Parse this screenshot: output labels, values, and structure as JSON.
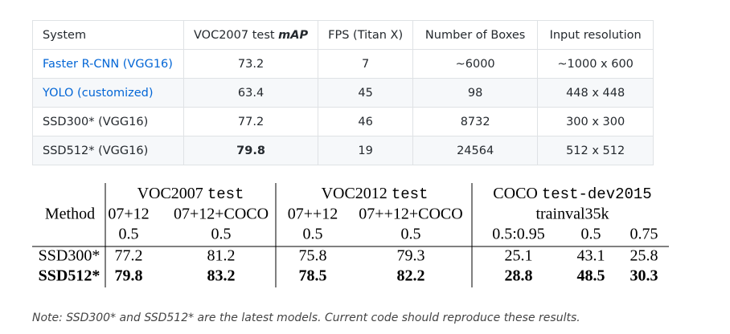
{
  "table": {
    "header": [
      "System",
      {
        "text": "VOC2007 test",
        "em": "mAP"
      },
      "FPS (Titan X)",
      "Number of Boxes",
      "Input resolution"
    ],
    "rows": [
      [
        "Faster R-CNN (VGG16)",
        "73.2",
        "7",
        "~6000",
        "~1000 x 600"
      ],
      [
        "YOLO (customized)",
        "63.4",
        "45",
        "98",
        "448 x 448"
      ],
      [
        "SSD300* (VGG16)",
        "77.2",
        "46",
        "8732",
        "300 x 300"
      ],
      [
        "SSD512* (VGG16)",
        "79.8",
        "19",
        "24564",
        "512 x 512"
      ]
    ]
  },
  "results": {
    "method_label": "Method",
    "groups": [
      {
        "name": "VOC2007",
        "mono": "test"
      },
      {
        "name": "VOC2012",
        "mono": "test"
      },
      {
        "name": "COCO",
        "mono": "test-dev2015",
        "sub": "trainval35k"
      }
    ],
    "train_sets": [
      "07+12",
      "07+12+COCO",
      "07++12",
      "07++12+COCO"
    ],
    "ious": [
      "0.5",
      "0.5",
      "0.5",
      "0.5",
      "0.5:0.95",
      "0.5",
      "0.75"
    ],
    "rows": [
      {
        "method": "SSD300*",
        "values": [
          "77.2",
          "81.2",
          "75.8",
          "79.3",
          "25.1",
          "43.1",
          "25.8"
        ]
      },
      {
        "method": "SSD512*",
        "values": [
          "79.8",
          "83.2",
          "78.5",
          "82.2",
          "28.8",
          "48.5",
          "30.3"
        ]
      }
    ]
  },
  "note": "Note: SSD300* and SSD512* are the latest models. Current code should reproduce these results."
}
